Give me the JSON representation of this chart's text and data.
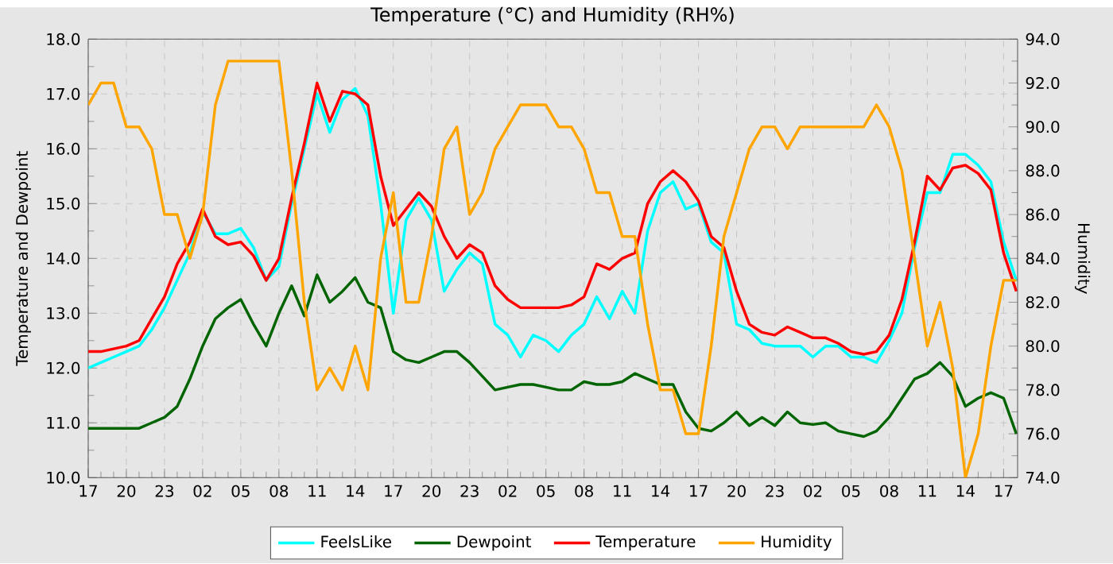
{
  "chart_data": {
    "type": "line",
    "title": "Temperature (°C) and Humidity (RH%)",
    "ylabel": "Temperature and Dewpoint",
    "y2label": "Humidity",
    "categories": [
      "17",
      null,
      null,
      "20",
      null,
      null,
      "23",
      null,
      null,
      "02",
      null,
      null,
      "05",
      null,
      null,
      "08",
      null,
      null,
      "11",
      null,
      null,
      "14",
      null,
      null,
      "17",
      null,
      null,
      "20",
      null,
      null,
      "23",
      null,
      null,
      "02",
      null,
      null,
      "05",
      null,
      null,
      "08",
      null,
      null,
      "11",
      null,
      null,
      "14",
      null,
      null,
      "17",
      null,
      null,
      "20",
      null,
      null,
      "23",
      null,
      null,
      "02",
      null,
      null,
      "05",
      null,
      null,
      "08",
      null,
      null,
      "11",
      null,
      null,
      "14",
      null,
      null,
      "17",
      null
    ],
    "ylim": [
      10,
      18
    ],
    "yticks": [
      {
        "value": 10,
        "label": "10.0"
      },
      {
        "value": 11,
        "label": "11.0"
      },
      {
        "value": 12,
        "label": "12.0"
      },
      {
        "value": 13,
        "label": "13.0"
      },
      {
        "value": 14,
        "label": "14.0"
      },
      {
        "value": 15,
        "label": "15.0"
      },
      {
        "value": 16,
        "label": "16.0"
      },
      {
        "value": 17,
        "label": "17.0"
      },
      {
        "value": 18,
        "label": "18.0"
      }
    ],
    "y2lim": [
      74,
      94
    ],
    "y2ticks": [
      {
        "value": 74,
        "label": "74.0"
      },
      {
        "value": 76,
        "label": "76.0"
      },
      {
        "value": 78,
        "label": "78.0"
      },
      {
        "value": 80,
        "label": "80.0"
      },
      {
        "value": 82,
        "label": "82.0"
      },
      {
        "value": 84,
        "label": "84.0"
      },
      {
        "value": 86,
        "label": "86.0"
      },
      {
        "value": 88,
        "label": "88.0"
      },
      {
        "value": 90,
        "label": "90.0"
      },
      {
        "value": 92,
        "label": "92.0"
      },
      {
        "value": 94,
        "label": "94.0"
      }
    ],
    "grid": true,
    "legend": "bottom",
    "series": [
      {
        "name": "FeelsLike",
        "color": "#00ffff",
        "values": [
          12.0,
          12.1,
          12.2,
          12.3,
          12.4,
          12.7,
          13.1,
          13.6,
          14.1,
          14.85,
          14.45,
          14.45,
          14.55,
          14.2,
          13.6,
          13.85,
          15.0,
          16.0,
          17.0,
          16.3,
          16.9,
          17.1,
          16.6,
          15.0,
          13.0,
          14.7,
          15.1,
          14.7,
          13.4,
          13.8,
          14.1,
          13.9,
          12.8,
          12.6,
          12.2,
          12.6,
          12.5,
          12.3,
          12.6,
          12.8,
          13.3,
          12.9,
          13.4,
          13.0,
          14.5,
          15.2,
          15.4,
          14.9,
          15.0,
          14.3,
          14.1,
          12.8,
          12.7,
          12.45,
          12.4,
          12.4,
          12.4,
          12.2,
          12.4,
          12.4,
          12.2,
          12.2,
          12.1,
          12.5,
          13.0,
          14.2,
          15.2,
          15.2,
          15.9,
          15.9,
          15.7,
          15.4,
          14.3,
          13.6
        ]
      },
      {
        "name": "Dewpoint",
        "color": "#006400",
        "values": [
          10.9,
          10.9,
          10.9,
          10.9,
          10.9,
          11.0,
          11.1,
          11.3,
          11.8,
          12.4,
          12.9,
          13.1,
          13.25,
          12.8,
          12.4,
          13.0,
          13.5,
          12.95,
          13.7,
          13.2,
          13.4,
          13.65,
          13.2,
          13.1,
          12.3,
          12.15,
          12.1,
          12.2,
          12.3,
          12.3,
          12.1,
          11.85,
          11.6,
          11.65,
          11.7,
          11.7,
          11.65,
          11.6,
          11.6,
          11.75,
          11.7,
          11.7,
          11.75,
          11.9,
          11.8,
          11.7,
          11.7,
          11.2,
          10.9,
          10.85,
          11.0,
          11.2,
          10.95,
          11.1,
          10.95,
          11.2,
          11.0,
          10.97,
          11.0,
          10.85,
          10.8,
          10.75,
          10.85,
          11.1,
          11.45,
          11.8,
          11.9,
          12.1,
          11.85,
          11.3,
          11.45,
          11.55,
          11.45,
          10.8
        ]
      },
      {
        "name": "Temperature",
        "color": "#ff0000",
        "values": [
          12.3,
          12.3,
          12.35,
          12.4,
          12.5,
          12.9,
          13.3,
          13.9,
          14.3,
          14.9,
          14.4,
          14.25,
          14.3,
          14.05,
          13.6,
          14.0,
          15.1,
          16.1,
          17.2,
          16.5,
          17.05,
          17.0,
          16.8,
          15.5,
          14.6,
          14.9,
          15.2,
          14.95,
          14.4,
          14.0,
          14.25,
          14.1,
          13.5,
          13.25,
          13.1,
          13.1,
          13.1,
          13.1,
          13.15,
          13.3,
          13.9,
          13.8,
          14.0,
          14.1,
          15.0,
          15.4,
          15.6,
          15.4,
          15.05,
          14.4,
          14.2,
          13.4,
          12.8,
          12.65,
          12.6,
          12.75,
          12.65,
          12.55,
          12.55,
          12.45,
          12.3,
          12.25,
          12.3,
          12.6,
          13.25,
          14.3,
          15.5,
          15.25,
          15.65,
          15.7,
          15.55,
          15.25,
          14.1,
          13.4
        ]
      },
      {
        "name": "Humidity",
        "color": "#ffa500",
        "axis": "y2",
        "values": [
          91,
          92,
          92,
          90,
          90,
          89,
          86,
          86,
          84,
          86,
          91,
          93,
          93,
          93,
          93,
          93,
          88,
          82,
          78,
          79,
          78,
          80,
          78,
          84,
          87,
          82,
          82,
          85,
          89,
          90,
          86,
          87,
          89,
          90,
          91,
          91,
          91,
          90,
          90,
          89,
          87,
          87,
          85,
          85,
          81,
          78,
          78,
          76,
          76,
          80,
          85,
          87,
          89,
          90,
          90,
          89,
          90,
          90,
          90,
          90,
          90,
          90,
          91,
          90,
          88,
          84,
          80,
          82,
          79,
          74,
          76,
          80,
          83,
          83
        ]
      }
    ]
  }
}
